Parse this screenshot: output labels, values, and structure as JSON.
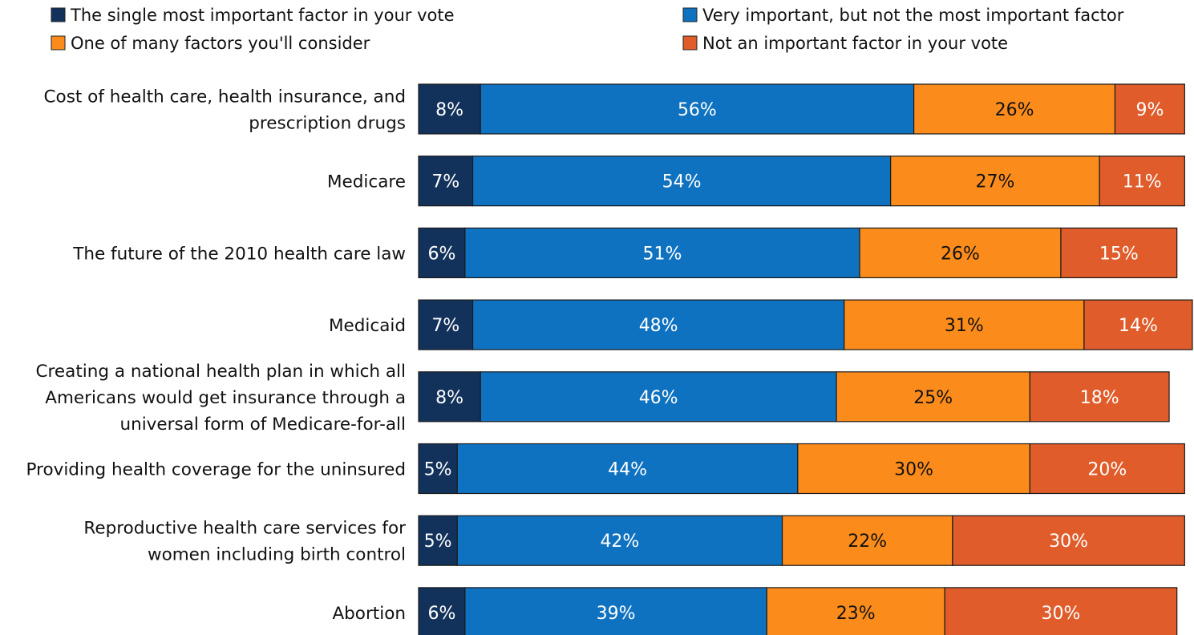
{
  "chart_data": {
    "type": "bar",
    "orientation": "horizontal",
    "stacked": true,
    "categories": [
      "Cost of health care, health insurance, and prescription drugs",
      "Medicare",
      "The future of the 2010 health care law",
      "Medicaid",
      "Creating a national health plan in which all Americans would get insurance through a universal form of Medicare-for-all",
      "Providing health coverage for the uninsured",
      "Reproductive health care services for women including birth control",
      "Abortion"
    ],
    "category_lines": [
      [
        "Cost of health care, health insurance, and",
        "prescription drugs"
      ],
      [
        "Medicare"
      ],
      [
        "The future of the 2010 health care law"
      ],
      [
        "Medicaid"
      ],
      [
        "Creating a national health plan in which all",
        "Americans would get insurance through a",
        "universal form of Medicare-for-all"
      ],
      [
        "Providing health coverage for the uninsured"
      ],
      [
        "Reproductive health care services for",
        "women including birth control"
      ],
      [
        "Abortion"
      ]
    ],
    "series": [
      {
        "name": "The single most important factor in your vote",
        "color": "#13325b",
        "label_color": "#ffffff",
        "values": [
          8,
          7,
          6,
          7,
          8,
          5,
          5,
          6
        ]
      },
      {
        "name": "Very important, but not the most important factor",
        "color": "#0f72c1",
        "label_color": "#ffffff",
        "values": [
          56,
          54,
          51,
          48,
          46,
          44,
          42,
          39
        ]
      },
      {
        "name": "One of many factors you'll consider",
        "color": "#fb8c1c",
        "label_color": "#111111",
        "values": [
          26,
          27,
          26,
          31,
          25,
          30,
          22,
          23
        ]
      },
      {
        "name": "Not an important factor in your vote",
        "color": "#e05c2a",
        "label_color": "#ffffff",
        "values": [
          9,
          11,
          15,
          14,
          18,
          20,
          30,
          30
        ]
      }
    ],
    "value_suffix": "%",
    "legend_position": "top",
    "grid": false,
    "title": "",
    "xlabel": "",
    "ylabel": ""
  }
}
